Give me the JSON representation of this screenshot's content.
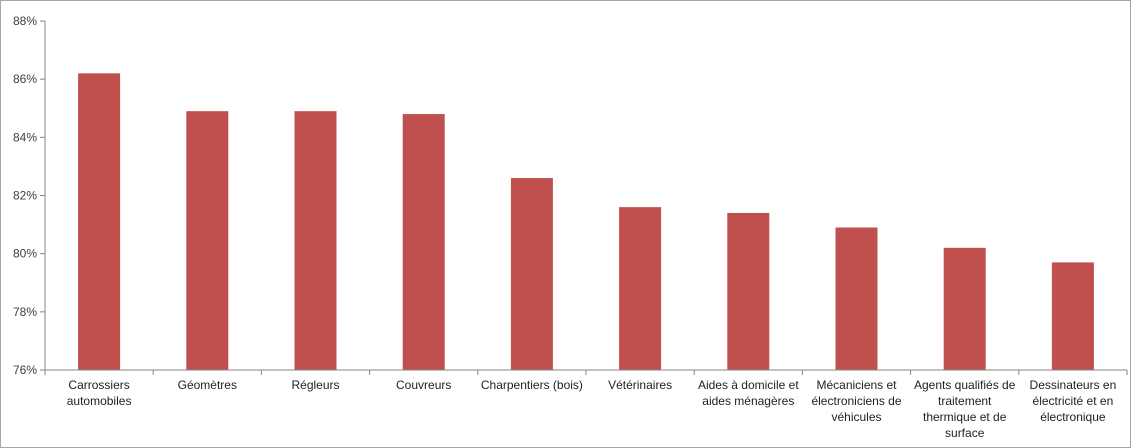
{
  "chart_data": {
    "type": "bar",
    "title": "",
    "xlabel": "",
    "ylabel": "",
    "ylim": [
      76,
      88
    ],
    "y_tick_step": 2,
    "y_tick_suffix": "%",
    "grid": false,
    "legend": "none",
    "bar_color": "#c0504d",
    "categories": [
      [
        "Carrossiers",
        "automobiles"
      ],
      [
        "Géomètres"
      ],
      [
        "Régleurs"
      ],
      [
        "Couvreurs"
      ],
      [
        "Charpentiers (bois)"
      ],
      [
        "Vétérinaires"
      ],
      [
        "Aides à domicile et",
        "aides ménagères"
      ],
      [
        "Mécaniciens et",
        "électroniciens de",
        "véhicules"
      ],
      [
        "Agents qualifiés de",
        "traitement",
        "thermique et de",
        "surface"
      ],
      [
        "Dessinateurs en",
        "électricité et en",
        "électronique"
      ]
    ],
    "values": [
      86.2,
      84.9,
      84.9,
      84.8,
      82.6,
      81.6,
      81.4,
      80.9,
      80.2,
      79.7
    ]
  }
}
